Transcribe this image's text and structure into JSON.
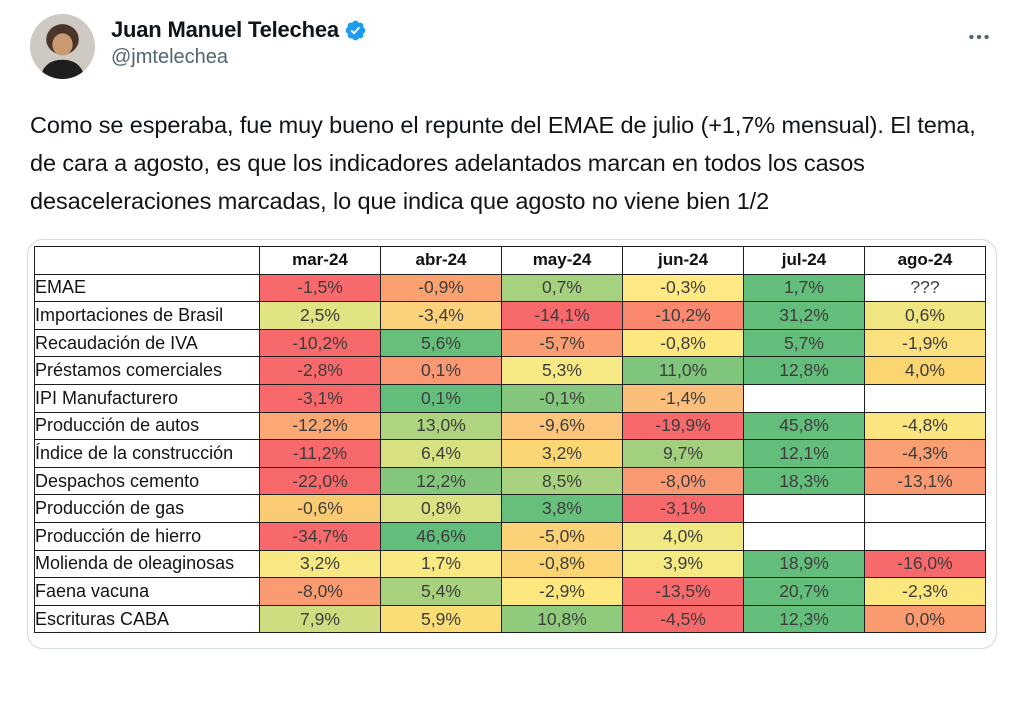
{
  "tweet": {
    "author": "Juan Manuel Telechea",
    "handle": "@jmtelechea",
    "body": "Como se esperaba, fue muy bueno el repunte del EMAE de julio (+1,7% mensual). El tema, de cara a agosto, es que los indicadores adelantados marcan en todos los casos desaceleraciones marcadas, lo que indica que agosto no viene bien 1/2"
  },
  "icons": {
    "verified_badge": "seal-check",
    "more": "ellipsis-horizontal"
  },
  "colors": {
    "verified_blue": "#1D9BF0",
    "handle_gray": "#536471",
    "text": "#0F1419",
    "card_border": "#CFD9DE",
    "scale_red": "#F8696B",
    "scale_yellow": "#FFE984",
    "scale_green": "#63BE7B"
  },
  "chart_data": {
    "type": "table",
    "columns": [
      "mar-24",
      "abr-24",
      "may-24",
      "jun-24",
      "jul-24",
      "ago-24"
    ],
    "rows": [
      {
        "label": "EMAE",
        "cells": [
          {
            "v": "-1,5%",
            "bg": "#F8696B"
          },
          {
            "v": "-0,9%",
            "bg": "#F9A16F"
          },
          {
            "v": "0,7%",
            "bg": "#A6D17E"
          },
          {
            "v": "-0,3%",
            "bg": "#FFE984"
          },
          {
            "v": "1,7%",
            "bg": "#63BE7B"
          },
          {
            "v": "???",
            "bg": "#FFFFFF"
          }
        ]
      },
      {
        "label": "Importaciones de Brasil",
        "cells": [
          {
            "v": "2,5%",
            "bg": "#E2E382"
          },
          {
            "v": "-3,4%",
            "bg": "#FCD17B"
          },
          {
            "v": "-14,1%",
            "bg": "#F8696B"
          },
          {
            "v": "-10,2%",
            "bg": "#F9886F"
          },
          {
            "v": "31,2%",
            "bg": "#63BE7B"
          },
          {
            "v": "0,6%",
            "bg": "#EFE682"
          }
        ]
      },
      {
        "label": "Recaudación de IVA",
        "cells": [
          {
            "v": "-10,2%",
            "bg": "#F8696B"
          },
          {
            "v": "5,6%",
            "bg": "#68BF7B"
          },
          {
            "v": "-5,7%",
            "bg": "#FA9D72"
          },
          {
            "v": "-0,8%",
            "bg": "#FDE87F"
          },
          {
            "v": "5,7%",
            "bg": "#63BE7B"
          },
          {
            "v": "-1,9%",
            "bg": "#FBE07E"
          }
        ]
      },
      {
        "label": "Préstamos comerciales",
        "cells": [
          {
            "v": "-2,8%",
            "bg": "#F8696B"
          },
          {
            "v": "0,1%",
            "bg": "#FA9873"
          },
          {
            "v": "5,3%",
            "bg": "#F7EA84"
          },
          {
            "v": "11,0%",
            "bg": "#7FC67C"
          },
          {
            "v": "12,8%",
            "bg": "#63BE7B"
          },
          {
            "v": "4,0%",
            "bg": "#FBD56F"
          }
        ]
      },
      {
        "label": "IPI Manufacturero",
        "cells": [
          {
            "v": "-3,1%",
            "bg": "#F8696B"
          },
          {
            "v": "0,1%",
            "bg": "#63BE7B"
          },
          {
            "v": "-0,1%",
            "bg": "#84C77C"
          },
          {
            "v": "-1,4%",
            "bg": "#FCBE7B"
          },
          {
            "v": "",
            "bg": "#FFFFFF"
          },
          {
            "v": "",
            "bg": "#FFFFFF"
          }
        ]
      },
      {
        "label": "Producción de autos",
        "cells": [
          {
            "v": "-12,2%",
            "bg": "#FBA874"
          },
          {
            "v": "13,0%",
            "bg": "#AFD47F"
          },
          {
            "v": "-9,6%",
            "bg": "#FCC67C"
          },
          {
            "v": "-19,9%",
            "bg": "#F8696B"
          },
          {
            "v": "45,8%",
            "bg": "#63BE7B"
          },
          {
            "v": "-4,8%",
            "bg": "#FAE57E"
          }
        ]
      },
      {
        "label": "Índice de la construcción",
        "cells": [
          {
            "v": "-11,2%",
            "bg": "#F8696B"
          },
          {
            "v": "6,4%",
            "bg": "#D9E081"
          },
          {
            "v": "3,2%",
            "bg": "#FBD674"
          },
          {
            "v": "9,7%",
            "bg": "#A2D07E"
          },
          {
            "v": "12,1%",
            "bg": "#63BE7B"
          },
          {
            "v": "-4,3%",
            "bg": "#FA9E73"
          }
        ]
      },
      {
        "label": "Despachos cemento",
        "cells": [
          {
            "v": "-22,0%",
            "bg": "#F8696B"
          },
          {
            "v": "12,2%",
            "bg": "#84C77C"
          },
          {
            "v": "8,5%",
            "bg": "#A8D27F"
          },
          {
            "v": "-8,0%",
            "bg": "#FA9A72"
          },
          {
            "v": "18,3%",
            "bg": "#63BE7B"
          },
          {
            "v": "-13,1%",
            "bg": "#FA9A72"
          }
        ]
      },
      {
        "label": "Producción de gas",
        "cells": [
          {
            "v": "-0,6%",
            "bg": "#FBCB73"
          },
          {
            "v": "0,8%",
            "bg": "#DCE181"
          },
          {
            "v": "3,8%",
            "bg": "#66BF7B"
          },
          {
            "v": "-3,1%",
            "bg": "#F8696B"
          },
          {
            "v": "",
            "bg": "#FFFFFF"
          },
          {
            "v": "",
            "bg": "#FFFFFF"
          }
        ]
      },
      {
        "label": "Producción de hierro",
        "cells": [
          {
            "v": "-34,7%",
            "bg": "#F8696B"
          },
          {
            "v": "46,6%",
            "bg": "#63BE7B"
          },
          {
            "v": "-5,0%",
            "bg": "#FBD276"
          },
          {
            "v": "4,0%",
            "bg": "#F1E783"
          },
          {
            "v": "",
            "bg": "#FFFFFF"
          },
          {
            "v": "",
            "bg": "#FFFFFF"
          }
        ]
      },
      {
        "label": "Molienda de oleaginosas",
        "cells": [
          {
            "v": "3,2%",
            "bg": "#F7E883"
          },
          {
            "v": "1,7%",
            "bg": "#FAE983"
          },
          {
            "v": "-0,8%",
            "bg": "#FBD473"
          },
          {
            "v": "3,9%",
            "bg": "#F4E983"
          },
          {
            "v": "18,9%",
            "bg": "#63BE7B"
          },
          {
            "v": "-16,0%",
            "bg": "#F8696B"
          }
        ]
      },
      {
        "label": "Faena vacuna",
        "cells": [
          {
            "v": "-8,0%",
            "bg": "#FA9B71"
          },
          {
            "v": "5,4%",
            "bg": "#A8D17E"
          },
          {
            "v": "-2,9%",
            "bg": "#FDE87F"
          },
          {
            "v": "-13,5%",
            "bg": "#F8696B"
          },
          {
            "v": "20,7%",
            "bg": "#63BE7B"
          },
          {
            "v": "-2,3%",
            "bg": "#FCE77E"
          }
        ]
      },
      {
        "label": "Escrituras CABA",
        "cells": [
          {
            "v": "7,9%",
            "bg": "#CFDD80"
          },
          {
            "v": "5,9%",
            "bg": "#FBDD76"
          },
          {
            "v": "10,8%",
            "bg": "#8FCA7D"
          },
          {
            "v": "-4,5%",
            "bg": "#F8696B"
          },
          {
            "v": "12,3%",
            "bg": "#63BE7B"
          },
          {
            "v": "0,0%",
            "bg": "#F99B6F"
          }
        ]
      }
    ]
  }
}
